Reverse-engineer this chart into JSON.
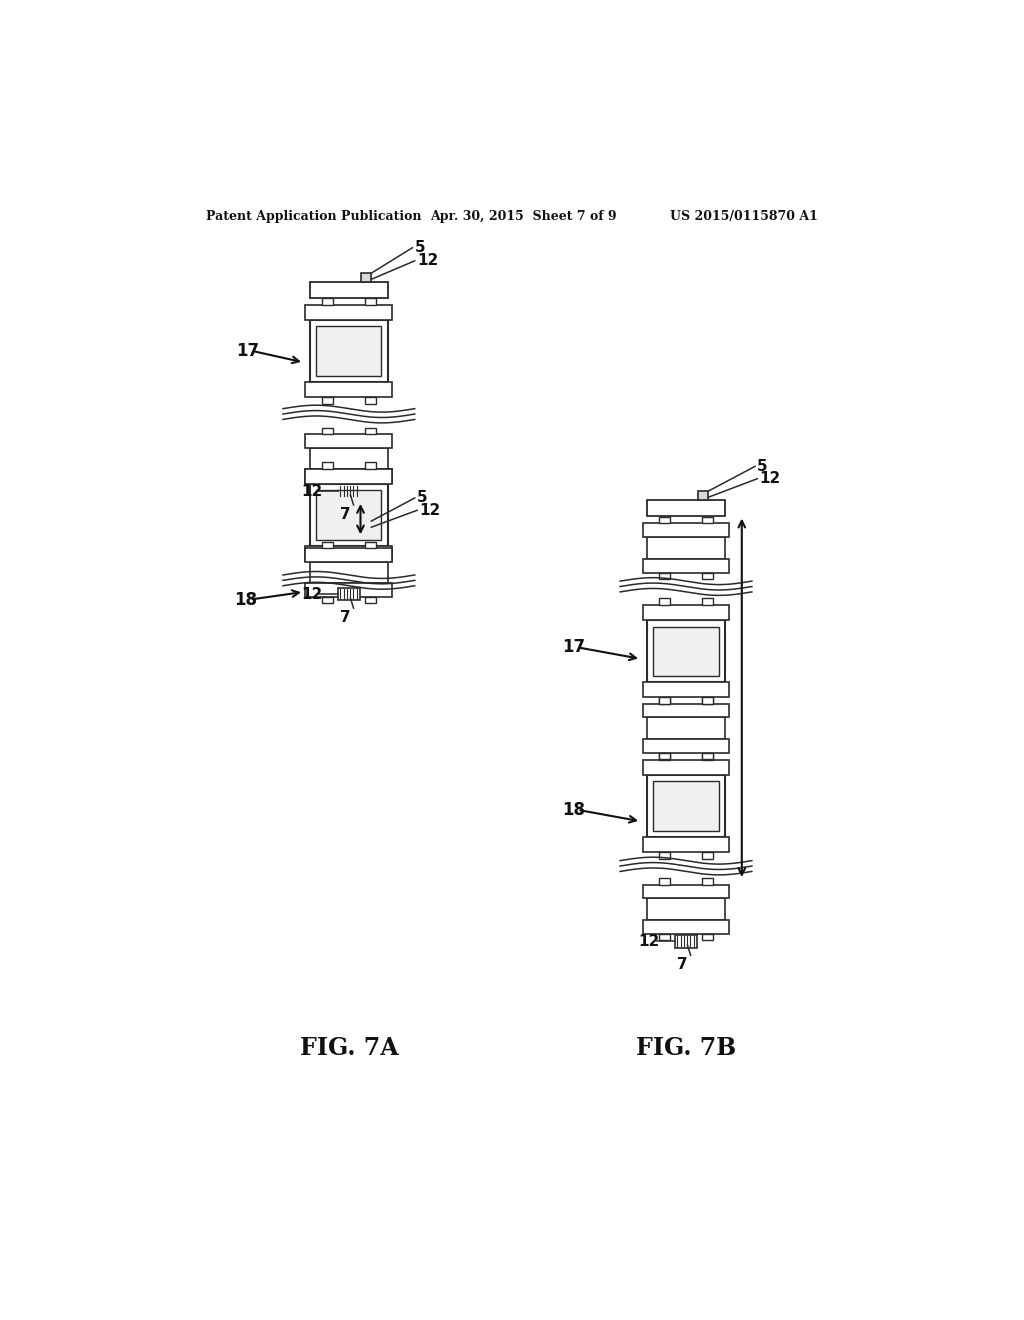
{
  "bg_color": "#ffffff",
  "header_left": "Patent Application Publication",
  "header_mid": "Apr. 30, 2015  Sheet 7 of 9",
  "header_right": "US 2015/0115870 A1",
  "fig7a_label": "FIG. 7A",
  "fig7b_label": "FIG. 7B",
  "line_color": "#2a2a2a",
  "dark_color": "#111111"
}
